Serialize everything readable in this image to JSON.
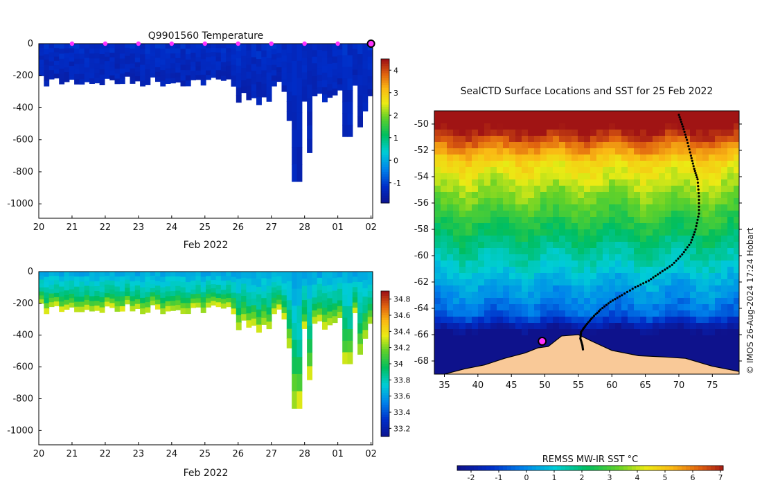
{
  "figure": {
    "copyright": "© IMOS 26-Aug-2024 17:24 Hobart"
  },
  "chart_data": [
    {
      "type": "heatmap",
      "variable": "temperature",
      "title": "Q9901560  Temperature",
      "xlabel": "Feb 2022",
      "ylabel": "",
      "x_ticks": [
        "20",
        "21",
        "22",
        "23",
        "24",
        "25",
        "26",
        "27",
        "28",
        "01",
        "02"
      ],
      "y_ticks": [
        0,
        -200,
        -400,
        -600,
        -800,
        -1000
      ],
      "ylim": [
        -1090,
        0
      ],
      "xlim_days": [
        0,
        10.05
      ],
      "colorbar": {
        "min": -1.9,
        "max": 4.5,
        "ticks": [
          4,
          3,
          2,
          1,
          0,
          -1
        ]
      },
      "marker_days": [
        1,
        2,
        3,
        4,
        5,
        6,
        7,
        8,
        9
      ],
      "current_marker_day": 10,
      "profile_count": 66,
      "value_shallow": -1.2,
      "value_deep": -1.4
    },
    {
      "type": "heatmap",
      "variable": "salinity",
      "title": "",
      "xlabel": "Feb 2022",
      "ylabel": "",
      "x_ticks": [
        "20",
        "21",
        "22",
        "23",
        "24",
        "25",
        "26",
        "27",
        "28",
        "01",
        "02"
      ],
      "y_ticks": [
        0,
        -200,
        -400,
        -600,
        -800,
        -1000
      ],
      "ylim": [
        -1090,
        0
      ],
      "xlim_days": [
        0,
        10.05
      ],
      "colorbar": {
        "min": 33.1,
        "max": 34.9,
        "ticks": [
          34.8,
          34.6,
          34.4,
          34.2,
          34,
          33.8,
          33.6,
          33.4,
          33.2
        ]
      },
      "surface_salinity": 33.65,
      "mid_salinity": 33.9,
      "deep_salinity": 34.45
    },
    {
      "type": "heatmap",
      "variable": "sst_map",
      "title": "SealCTD Surface Locations and SST for 25 Feb 2022",
      "xlabel": "",
      "ylabel": "",
      "x_ticks": [
        35,
        40,
        45,
        50,
        55,
        60,
        65,
        70,
        75
      ],
      "y_ticks": [
        -50,
        -52,
        -54,
        -56,
        -58,
        -60,
        -62,
        -64,
        -66,
        -68
      ],
      "xlim": [
        33.5,
        79
      ],
      "ylim": [
        -69,
        -49
      ],
      "colorbar": {
        "label": "REMSS MW-IR SST °C",
        "min": -2.5,
        "max": 7.1,
        "ticks": [
          -2,
          -1,
          0,
          1,
          2,
          3,
          4,
          5,
          6,
          7
        ]
      },
      "track_lon": [
        70.0,
        70.6,
        71.2,
        71.8,
        72.3,
        72.8,
        73.0,
        73.0,
        72.5,
        71.8,
        70.5,
        69.0,
        67.2,
        65.5,
        63.5,
        61.5,
        59.8,
        58.3,
        57.1,
        56.1,
        55.4,
        55.3,
        55.6,
        55.7
      ],
      "track_lat": [
        -49.3,
        -50.2,
        -51.2,
        -52.4,
        -53.4,
        -54.2,
        -55.5,
        -56.8,
        -58.0,
        -59.0,
        -59.9,
        -60.7,
        -61.3,
        -61.9,
        -62.4,
        -63.0,
        -63.5,
        -64.1,
        -64.7,
        -65.3,
        -65.8,
        -66.3,
        -66.8,
        -67.2
      ],
      "start_point": {
        "lon": 49.6,
        "lat": -66.5
      }
    }
  ]
}
